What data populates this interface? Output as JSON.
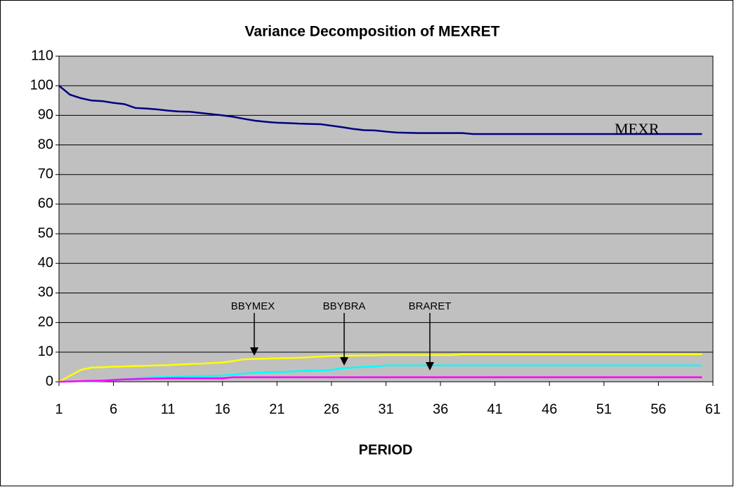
{
  "chart_data": {
    "type": "line",
    "title": "Variance Decomposition of MEXRET",
    "x_label": "PERIOD",
    "x": [
      1,
      2,
      3,
      4,
      5,
      6,
      7,
      8,
      9,
      10,
      11,
      12,
      13,
      14,
      15,
      16,
      17,
      18,
      19,
      20,
      21,
      22,
      23,
      24,
      25,
      26,
      27,
      28,
      29,
      30,
      31,
      32,
      33,
      34,
      35,
      36,
      37,
      38,
      39,
      40,
      41,
      42,
      43,
      44,
      45,
      46,
      47,
      48,
      49,
      50,
      51,
      52,
      53,
      54,
      55,
      56,
      57,
      58,
      59,
      60
    ],
    "series": [
      {
        "color": "#000080",
        "values": [
          100,
          97,
          95.8,
          95,
          94.8,
          94.2,
          93.8,
          92.5,
          92.3,
          92,
          91.6,
          91.3,
          91.2,
          90.8,
          90.4,
          90,
          89.5,
          88.8,
          88.2,
          87.8,
          87.5,
          87.4,
          87.2,
          87.1,
          87,
          86.5,
          86,
          85.4,
          85,
          84.9,
          84.5,
          84.2,
          84.1,
          84,
          84,
          84,
          84,
          84,
          83.7,
          83.7,
          83.7,
          83.7,
          83.7,
          83.7,
          83.7,
          83.7,
          83.7,
          83.7,
          83.7,
          83.7,
          83.7,
          83.7,
          83.7,
          83.7,
          83.7,
          83.7,
          83.7,
          83.7,
          83.7,
          83.7
        ]
      },
      {
        "color": "#ffff00",
        "values": [
          0,
          2,
          4,
          4.8,
          4.9,
          5.1,
          5.2,
          5.3,
          5.4,
          5.5,
          5.6,
          5.8,
          6,
          6.1,
          6.3,
          6.5,
          7,
          7.6,
          7.7,
          7.8,
          7.9,
          8,
          8.1,
          8.3,
          8.5,
          8.7,
          8.8,
          8.8,
          8.9,
          8.9,
          9,
          9,
          9,
          9,
          9,
          9,
          9,
          9.3,
          9.3,
          9.3,
          9.3,
          9.3,
          9.3,
          9.3,
          9.3,
          9.3,
          9.3,
          9.3,
          9.3,
          9.3,
          9.3,
          9.3,
          9.3,
          9.3,
          9.3,
          9.3,
          9.3,
          9.3,
          9.3,
          9.3
        ]
      },
      {
        "color": "#00ffff",
        "values": [
          0,
          0.1,
          0.2,
          0.2,
          0.3,
          0.5,
          0.8,
          1.2,
          1.4,
          1.5,
          1.6,
          1.7,
          1.8,
          1.9,
          2,
          2.1,
          2.4,
          2.8,
          3,
          3.2,
          3.3,
          3.4,
          3.6,
          3.7,
          3.8,
          4,
          4.6,
          4.8,
          5,
          5.2,
          5.5,
          5.5,
          5.5,
          5.5,
          5.5,
          5.5,
          5.5,
          5.5,
          5.5,
          5.5,
          5.5,
          5.5,
          5.5,
          5.5,
          5.5,
          5.5,
          5.5,
          5.5,
          5.5,
          5.5,
          5.5,
          5.5,
          5.5,
          5.5,
          5.5,
          5.5,
          5.5,
          5.5,
          5.5,
          5.5
        ]
      },
      {
        "color": "#ff00ff",
        "values": [
          0,
          0.1,
          0.2,
          0.3,
          0.4,
          0.6,
          0.8,
          0.9,
          1,
          1.1,
          1.2,
          1.2,
          1.2,
          1.2,
          1.2,
          1.2,
          1.5,
          1.5,
          1.5,
          1.5,
          1.5,
          1.5,
          1.5,
          1.5,
          1.5,
          1.5,
          1.5,
          1.5,
          1.5,
          1.5,
          1.5,
          1.5,
          1.5,
          1.5,
          1.5,
          1.5,
          1.5,
          1.5,
          1.5,
          1.5,
          1.5,
          1.5,
          1.5,
          1.5,
          1.5,
          1.5,
          1.5,
          1.5,
          1.5,
          1.5,
          1.5,
          1.5,
          1.5,
          1.5,
          1.5,
          1.5,
          1.5,
          1.5,
          1.5,
          1.5
        ]
      }
    ],
    "annotations": [
      "MEXR",
      "BBYMEX",
      "BBYBRA",
      "BRARET"
    ],
    "xlim": [
      1,
      61
    ],
    "xticks": [
      1,
      6,
      11,
      16,
      21,
      26,
      31,
      36,
      41,
      46,
      51,
      56,
      61
    ],
    "ylim": [
      0,
      110
    ],
    "yticks": [
      0,
      10,
      20,
      30,
      40,
      50,
      60,
      70,
      80,
      90,
      100,
      110
    ],
    "grid": true,
    "plot_background": "#c0c0c0"
  }
}
